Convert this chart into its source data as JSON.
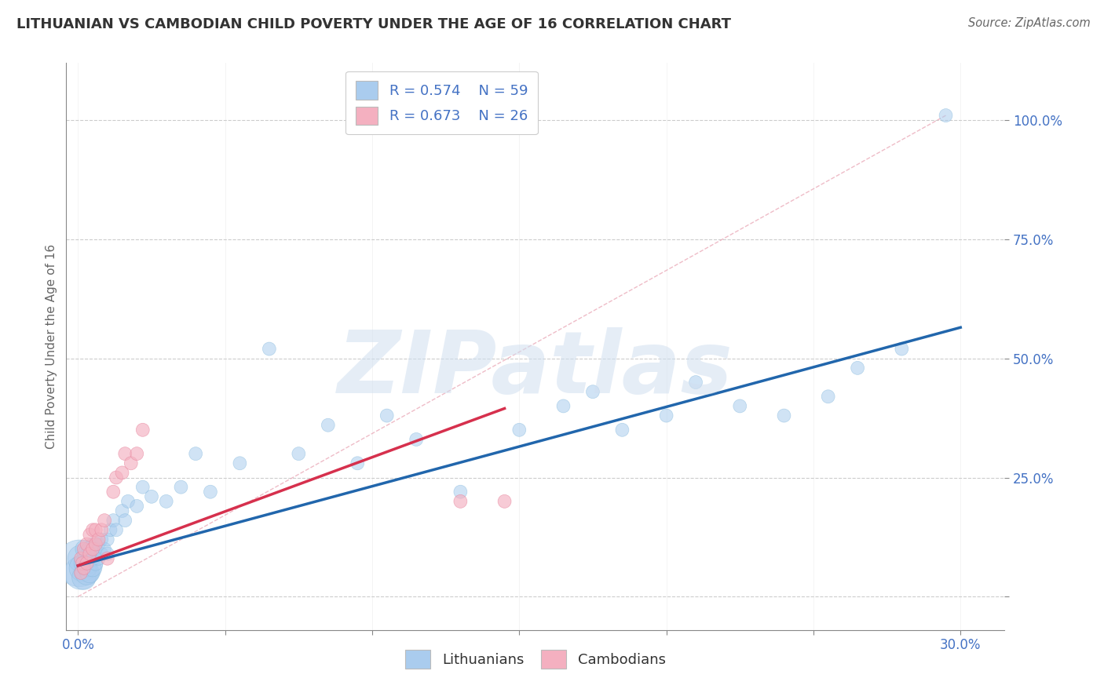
{
  "title": "LITHUANIAN VS CAMBODIAN CHILD POVERTY UNDER THE AGE OF 16 CORRELATION CHART",
  "source": "Source: ZipAtlas.com",
  "ylabel": "Child Poverty Under the Age of 16",
  "x_ticks": [
    0.0,
    0.05,
    0.1,
    0.15,
    0.2,
    0.25,
    0.3
  ],
  "y_ticks": [
    0.0,
    0.25,
    0.5,
    0.75,
    1.0
  ],
  "xlim": [
    -0.004,
    0.315
  ],
  "ylim": [
    -0.07,
    1.12
  ],
  "legend_r1": "R = 0.574",
  "legend_n1": "N = 59",
  "legend_r2": "R = 0.673",
  "legend_n2": "N = 26",
  "color_blue": "#aaccee",
  "color_pink": "#f4b0c0",
  "color_blue_line": "#2166ac",
  "color_pink_line": "#d6304d",
  "color_ref_line": "#e8a0b0",
  "color_grid": "#cccccc",
  "color_axis_text": "#4472c4",
  "watermark": "ZIPatlas",
  "lit_x": [
    0.0005,
    0.001,
    0.001,
    0.0015,
    0.002,
    0.002,
    0.002,
    0.003,
    0.003,
    0.003,
    0.0035,
    0.004,
    0.004,
    0.004,
    0.005,
    0.005,
    0.005,
    0.006,
    0.006,
    0.007,
    0.007,
    0.008,
    0.008,
    0.009,
    0.01,
    0.01,
    0.011,
    0.012,
    0.013,
    0.015,
    0.016,
    0.017,
    0.02,
    0.022,
    0.025,
    0.03,
    0.035,
    0.04,
    0.045,
    0.055,
    0.065,
    0.075,
    0.085,
    0.095,
    0.105,
    0.115,
    0.13,
    0.15,
    0.165,
    0.175,
    0.185,
    0.2,
    0.21,
    0.225,
    0.24,
    0.255,
    0.265,
    0.28,
    0.295
  ],
  "lit_y": [
    0.07,
    0.05,
    0.08,
    0.06,
    0.04,
    0.07,
    0.1,
    0.05,
    0.07,
    0.09,
    0.06,
    0.05,
    0.08,
    0.1,
    0.06,
    0.08,
    0.11,
    0.07,
    0.1,
    0.08,
    0.11,
    0.09,
    0.12,
    0.1,
    0.09,
    0.12,
    0.14,
    0.16,
    0.14,
    0.18,
    0.16,
    0.2,
    0.19,
    0.23,
    0.21,
    0.2,
    0.23,
    0.3,
    0.22,
    0.28,
    0.52,
    0.3,
    0.36,
    0.28,
    0.38,
    0.33,
    0.22,
    0.35,
    0.4,
    0.43,
    0.35,
    0.38,
    0.45,
    0.4,
    0.38,
    0.42,
    0.48,
    0.52,
    1.01
  ],
  "lit_size_scale": [
    3.5,
    2.5,
    2.0,
    2.0,
    1.8,
    1.5,
    1.3,
    1.8,
    1.6,
    1.4,
    1.3,
    1.5,
    1.3,
    1.2,
    1.3,
    1.1,
    1.0,
    1.1,
    1.0,
    1.0,
    1.0,
    1.0,
    1.0,
    1.0,
    1.0,
    1.0,
    1.0,
    1.0,
    1.0,
    1.0,
    1.0,
    1.0,
    1.0,
    1.0,
    1.0,
    1.0,
    1.0,
    1.0,
    1.0,
    1.0,
    1.0,
    1.0,
    1.0,
    1.0,
    1.0,
    1.0,
    1.0,
    1.0,
    1.0,
    1.0,
    1.0,
    1.0,
    1.0,
    1.0,
    1.0,
    1.0,
    1.0,
    1.0,
    1.0
  ],
  "cam_x": [
    0.001,
    0.001,
    0.0015,
    0.002,
    0.002,
    0.003,
    0.003,
    0.004,
    0.004,
    0.005,
    0.005,
    0.006,
    0.006,
    0.007,
    0.008,
    0.009,
    0.01,
    0.012,
    0.013,
    0.015,
    0.016,
    0.018,
    0.02,
    0.022,
    0.13,
    0.145
  ],
  "cam_y": [
    0.05,
    0.08,
    0.07,
    0.06,
    0.1,
    0.07,
    0.11,
    0.09,
    0.13,
    0.1,
    0.14,
    0.11,
    0.14,
    0.12,
    0.14,
    0.16,
    0.08,
    0.22,
    0.25,
    0.26,
    0.3,
    0.28,
    0.3,
    0.35,
    0.2,
    0.2
  ],
  "blue_line_x": [
    0.0,
    0.3
  ],
  "blue_line_y": [
    0.065,
    0.565
  ],
  "pink_line_x": [
    0.0,
    0.145
  ],
  "pink_line_y": [
    0.065,
    0.395
  ],
  "ref_line_x": [
    0.0,
    0.295
  ],
  "ref_line_y": [
    0.0,
    1.01
  ]
}
